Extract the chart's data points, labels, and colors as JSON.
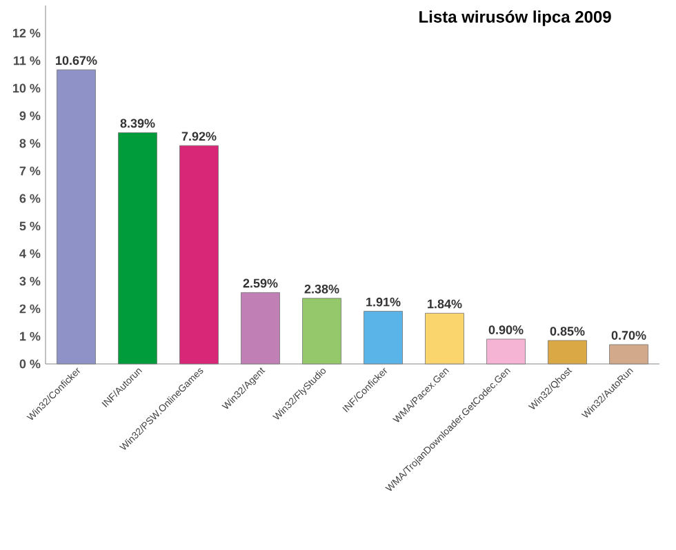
{
  "chart_data": {
    "type": "bar",
    "title": "Lista wirusów lipca 2009",
    "categories": [
      "Win32/Conficker",
      "INF/Autorun",
      "Win32/PSW.OnlineGames",
      "Win32/Agent",
      "Win32/FlyStudio",
      "INF/Conficker",
      "WMA/Pacex.Gen",
      "WMA/TrojanDownloader.GetCodec.Gen",
      "Win32/Qhost",
      "Win32/AutoRun"
    ],
    "values": [
      10.67,
      8.39,
      7.92,
      2.59,
      2.38,
      1.91,
      1.84,
      0.9,
      0.85,
      0.7
    ],
    "value_labels": [
      "10.67%",
      "8.39%",
      "7.92%",
      "2.59%",
      "2.38%",
      "1.91%",
      "1.84%",
      "0.90%",
      "0.85%",
      "0.70%"
    ],
    "colors": [
      "#8e92c6",
      "#009b3a",
      "#d92777",
      "#c07fb5",
      "#95c86a",
      "#5bb4e8",
      "#fad56d",
      "#f6b4d4",
      "#dba846",
      "#d2a98a"
    ],
    "ylim": [
      0,
      13
    ],
    "yticks": [
      {
        "value": 0,
        "label": "0 %"
      },
      {
        "value": 1,
        "label": "1 %"
      },
      {
        "value": 2,
        "label": "2 %"
      },
      {
        "value": 3,
        "label": "3 %"
      },
      {
        "value": 4,
        "label": "4 %"
      },
      {
        "value": 5,
        "label": "5 %"
      },
      {
        "value": 6,
        "label": "6 %"
      },
      {
        "value": 7,
        "label": "7 %"
      },
      {
        "value": 8,
        "label": "8 %"
      },
      {
        "value": 9,
        "label": "9 %"
      },
      {
        "value": 10,
        "label": "10 %"
      },
      {
        "value": 11,
        "label": "11 %"
      },
      {
        "value": 12,
        "label": "12 %"
      }
    ],
    "grid": false
  }
}
